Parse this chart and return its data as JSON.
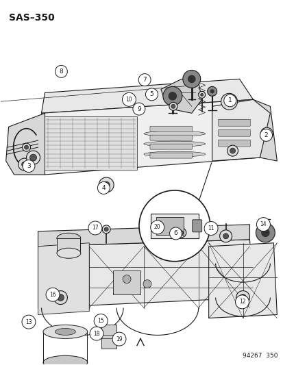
{
  "title": "SAS–350",
  "watermark": "94267  350",
  "bg_color": "#ffffff",
  "fg_color": "#000000",
  "title_fontsize": 10,
  "watermark_fontsize": 6.5,
  "fig_width": 4.14,
  "fig_height": 5.33,
  "dpi": 100,
  "label_data": [
    [
      1,
      0.755,
      0.735
    ],
    [
      2,
      0.92,
      0.66
    ],
    [
      3,
      0.13,
      0.56
    ],
    [
      4,
      0.24,
      0.45
    ],
    [
      5,
      0.53,
      0.75
    ],
    [
      6,
      0.43,
      0.37
    ],
    [
      7,
      0.49,
      0.775
    ],
    [
      8,
      0.215,
      0.87
    ],
    [
      9,
      0.43,
      0.72
    ],
    [
      10,
      0.445,
      0.75
    ],
    [
      11,
      0.77,
      0.44
    ],
    [
      12,
      0.57,
      0.26
    ],
    [
      13,
      0.06,
      0.105
    ],
    [
      14,
      0.89,
      0.445
    ],
    [
      15,
      0.225,
      0.12
    ],
    [
      16,
      0.16,
      0.195
    ],
    [
      17,
      0.265,
      0.33
    ],
    [
      18,
      0.265,
      0.1
    ],
    [
      19,
      0.32,
      0.085
    ],
    [
      20,
      0.43,
      0.325
    ]
  ]
}
